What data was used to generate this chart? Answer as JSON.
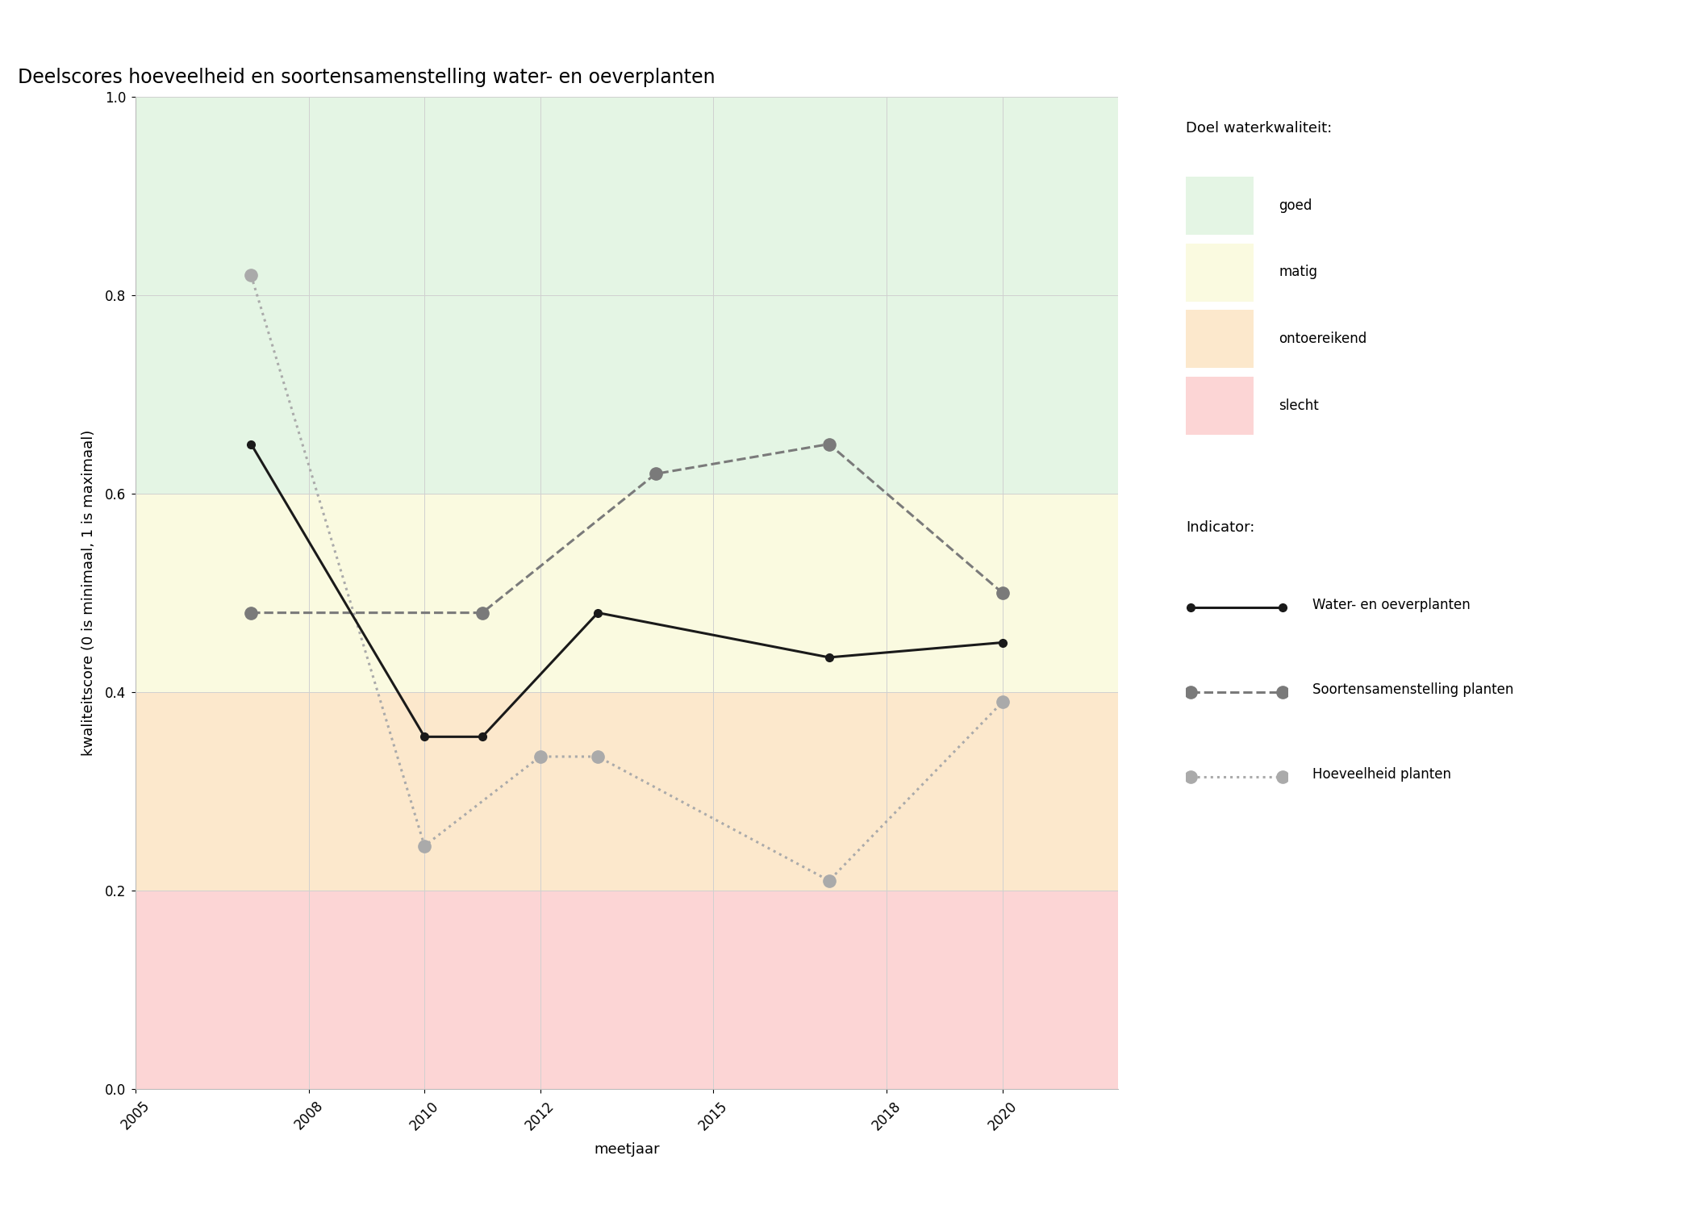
{
  "title": "Deelscores hoeveelheid en soortensamenstelling water- en oeverplanten",
  "xlabel": "meetjaar",
  "ylabel": "kwaliteitscore (0 is minimaal, 1 is maximaal)",
  "xlim": [
    2005,
    2022
  ],
  "ylim": [
    0.0,
    1.0
  ],
  "xticks": [
    2005,
    2008,
    2010,
    2012,
    2015,
    2018,
    2020
  ],
  "yticks": [
    0.0,
    0.2,
    0.4,
    0.6,
    0.8,
    1.0
  ],
  "bg_bands": [
    {
      "ymin": 0.0,
      "ymax": 0.2,
      "color": "#fcd5d5",
      "label": "slecht"
    },
    {
      "ymin": 0.2,
      "ymax": 0.4,
      "color": "#fce8cc",
      "label": "ontoereikend"
    },
    {
      "ymin": 0.4,
      "ymax": 0.6,
      "color": "#fafae0",
      "label": "matig"
    },
    {
      "ymin": 0.6,
      "ymax": 1.0,
      "color": "#e4f5e4",
      "label": "goed"
    }
  ],
  "series": [
    {
      "name": "Water- en oeverplanten",
      "x": [
        2007,
        2010,
        2011,
        2013,
        2017,
        2020
      ],
      "y": [
        0.65,
        0.355,
        0.355,
        0.48,
        0.435,
        0.45
      ],
      "color": "#1a1a1a",
      "linestyle": "solid",
      "linewidth": 2.2,
      "marker": "o",
      "markersize": 7,
      "zorder": 5
    },
    {
      "name": "Soortensamenstelling planten",
      "x": [
        2007,
        2011,
        2014,
        2017,
        2020
      ],
      "y": [
        0.48,
        0.48,
        0.62,
        0.65,
        0.5
      ],
      "color": "#7a7a7a",
      "linestyle": "dashed",
      "linewidth": 2.2,
      "marker": "o",
      "markersize": 11,
      "zorder": 4
    },
    {
      "name": "Hoeveelheid planten",
      "x": [
        2007,
        2010,
        2012,
        2013,
        2017,
        2020
      ],
      "y": [
        0.82,
        0.245,
        0.335,
        0.335,
        0.21,
        0.39
      ],
      "color": "#aaaaaa",
      "linestyle": "dotted",
      "linewidth": 2.2,
      "marker": "o",
      "markersize": 11,
      "zorder": 3
    }
  ],
  "legend_title_quality": "Doel waterkwaliteit:",
  "legend_title_indicator": "Indicator:",
  "grid_color": "#d0d0d0",
  "bg_color": "#ffffff",
  "title_fontsize": 17,
  "label_fontsize": 13,
  "tick_fontsize": 12,
  "legend_fontsize": 12,
  "legend_title_fontsize": 13
}
